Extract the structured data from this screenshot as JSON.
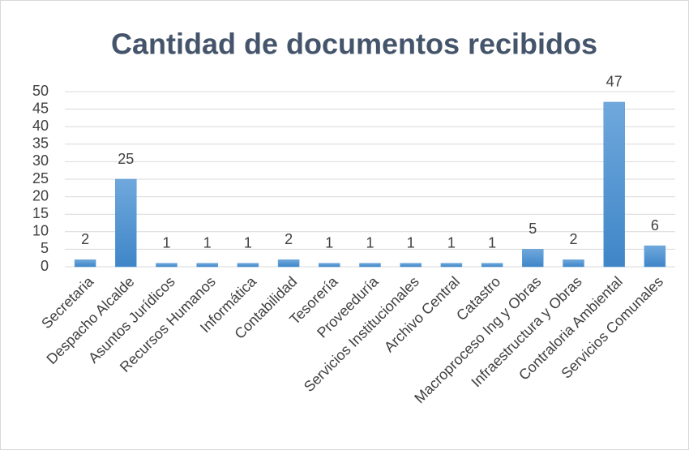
{
  "chart_data": {
    "type": "bar",
    "title": "Cantidad de documentos recibidos",
    "categories": [
      "Secretaria",
      "Despacho Alcalde",
      "Asuntos Jurídicos",
      "Recursos Humanos",
      "Informática",
      "Contabilidad",
      "Tesorería",
      "Proveeduría",
      "Servicios Institucionales",
      "Archivo Central",
      "Catastro",
      "Macroproceso Ing y Obras",
      "Infraestructura y Obras",
      "Contraloria Ambiental",
      "Servicios Comunales"
    ],
    "values": [
      2,
      25,
      1,
      1,
      1,
      2,
      1,
      1,
      1,
      1,
      1,
      5,
      2,
      47,
      6
    ],
    "color": "#5b9bd5",
    "ylim": [
      0,
      50
    ],
    "yticks": [
      0,
      5,
      10,
      15,
      20,
      25,
      30,
      35,
      40,
      45,
      50
    ],
    "grid": true
  }
}
